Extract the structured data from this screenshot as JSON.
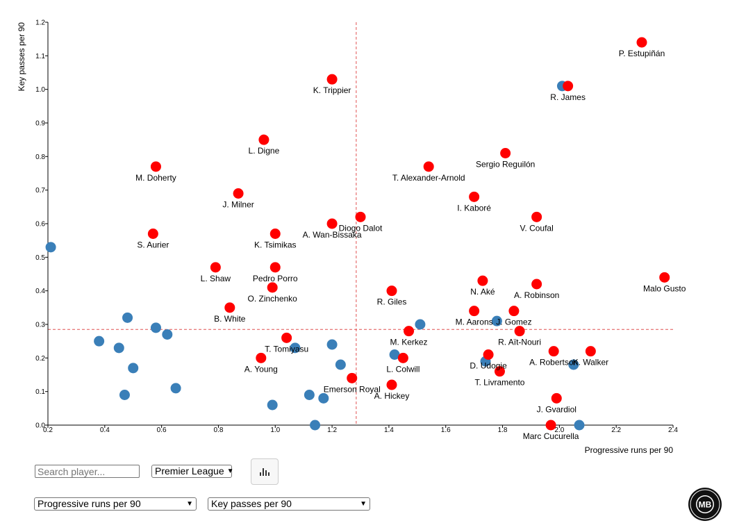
{
  "colors": {
    "highlight": "#ff0000",
    "default": "#3a7fb8",
    "mean_line": "#e05050"
  },
  "chart_data": {
    "type": "scatter",
    "xlabel": "Progressive runs per 90",
    "ylabel": "Key passes per 90",
    "xlim": [
      0.2,
      2.4
    ],
    "ylim": [
      0.0,
      1.2
    ],
    "x_ticks": [
      "0.2",
      "0.4",
      "0.6",
      "0.8",
      "1.0",
      "1.2",
      "1.4",
      "1.6",
      "1.8",
      "2.0",
      "2.2",
      "2.4"
    ],
    "y_ticks": [
      "0.0",
      "0.1",
      "0.2",
      "0.3",
      "0.4",
      "0.5",
      "0.6",
      "0.7",
      "0.8",
      "0.9",
      "1.0",
      "1.1",
      "1.2"
    ],
    "grid": false,
    "reference_lines": {
      "x": 1.285,
      "y": 0.285
    },
    "highlighted": [
      {
        "name": "P. Estupiñán",
        "x": 2.29,
        "y": 1.14
      },
      {
        "name": "R. James",
        "x": 2.03,
        "y": 1.01
      },
      {
        "name": "K. Trippier",
        "x": 1.2,
        "y": 1.03
      },
      {
        "name": "L. Digne",
        "x": 0.96,
        "y": 0.85
      },
      {
        "name": "Sergio Reguilón",
        "x": 1.81,
        "y": 0.81
      },
      {
        "name": "M. Doherty",
        "x": 0.58,
        "y": 0.77
      },
      {
        "name": "T. Alexander-Arnold",
        "x": 1.54,
        "y": 0.77
      },
      {
        "name": "J. Milner",
        "x": 0.87,
        "y": 0.69
      },
      {
        "name": "I. Kaboré",
        "x": 1.7,
        "y": 0.68
      },
      {
        "name": "Diogo Dalot",
        "x": 1.3,
        "y": 0.62
      },
      {
        "name": "V. Coufal",
        "x": 1.92,
        "y": 0.62
      },
      {
        "name": "A. Wan-Bissaka",
        "x": 1.2,
        "y": 0.6
      },
      {
        "name": "S. Aurier",
        "x": 0.57,
        "y": 0.57
      },
      {
        "name": "K. Tsimikas",
        "x": 1.0,
        "y": 0.57
      },
      {
        "name": "L. Shaw",
        "x": 0.79,
        "y": 0.47
      },
      {
        "name": "Pedro Porro",
        "x": 1.0,
        "y": 0.47
      },
      {
        "name": "Malo Gusto",
        "x": 2.37,
        "y": 0.44
      },
      {
        "name": "N. Aké",
        "x": 1.73,
        "y": 0.43
      },
      {
        "name": "A. Robinson",
        "x": 1.92,
        "y": 0.42
      },
      {
        "name": "O. Zinchenko",
        "x": 0.99,
        "y": 0.41
      },
      {
        "name": "R. Giles",
        "x": 1.41,
        "y": 0.4
      },
      {
        "name": "B. White",
        "x": 0.84,
        "y": 0.35
      },
      {
        "name": "M. Aarons",
        "x": 1.7,
        "y": 0.34
      },
      {
        "name": "J. Gomez",
        "x": 1.84,
        "y": 0.34
      },
      {
        "name": "M. Kerkez",
        "x": 1.47,
        "y": 0.28
      },
      {
        "name": "R. Aït-Nouri",
        "x": 1.86,
        "y": 0.28
      },
      {
        "name": "T. Tomiyasu",
        "x": 1.04,
        "y": 0.26
      },
      {
        "name": "A. Young",
        "x": 0.95,
        "y": 0.2
      },
      {
        "name": "L. Colwill",
        "x": 1.45,
        "y": 0.2
      },
      {
        "name": "D. Udogie",
        "x": 1.75,
        "y": 0.21
      },
      {
        "name": "A. Robertson",
        "x": 1.98,
        "y": 0.22
      },
      {
        "name": "K. Walker",
        "x": 2.11,
        "y": 0.22
      },
      {
        "name": "T. Livramento",
        "x": 1.79,
        "y": 0.16
      },
      {
        "name": "Emerson Royal",
        "x": 1.27,
        "y": 0.14
      },
      {
        "name": "A. Hickey",
        "x": 1.41,
        "y": 0.12
      },
      {
        "name": "J. Gvardiol",
        "x": 1.99,
        "y": 0.08
      },
      {
        "name": "Marc Cucurella",
        "x": 1.97,
        "y": 0.0
      }
    ],
    "others": [
      {
        "x": 2.01,
        "y": 1.01
      },
      {
        "x": 0.21,
        "y": 0.53
      },
      {
        "x": 0.48,
        "y": 0.32
      },
      {
        "x": 0.58,
        "y": 0.29
      },
      {
        "x": 0.62,
        "y": 0.27
      },
      {
        "x": 0.38,
        "y": 0.25
      },
      {
        "x": 0.45,
        "y": 0.23
      },
      {
        "x": 0.5,
        "y": 0.17
      },
      {
        "x": 0.47,
        "y": 0.09
      },
      {
        "x": 0.65,
        "y": 0.11
      },
      {
        "x": 0.99,
        "y": 0.06
      },
      {
        "x": 1.07,
        "y": 0.23
      },
      {
        "x": 1.12,
        "y": 0.09
      },
      {
        "x": 1.14,
        "y": 0.0
      },
      {
        "x": 1.17,
        "y": 0.08
      },
      {
        "x": 1.2,
        "y": 0.24
      },
      {
        "x": 1.23,
        "y": 0.18
      },
      {
        "x": 1.42,
        "y": 0.21
      },
      {
        "x": 1.51,
        "y": 0.3
      },
      {
        "x": 1.74,
        "y": 0.19
      },
      {
        "x": 1.78,
        "y": 0.31
      },
      {
        "x": 2.05,
        "y": 0.18
      },
      {
        "x": 2.07,
        "y": 0.0
      }
    ]
  },
  "controls": {
    "search_placeholder": "Search player...",
    "league": "Premier League",
    "x_metric": "Progressive runs per 90",
    "y_metric": "Key passes per 90",
    "chart_icon": "bar-chart-icon"
  },
  "logo": {
    "text": "MB"
  }
}
